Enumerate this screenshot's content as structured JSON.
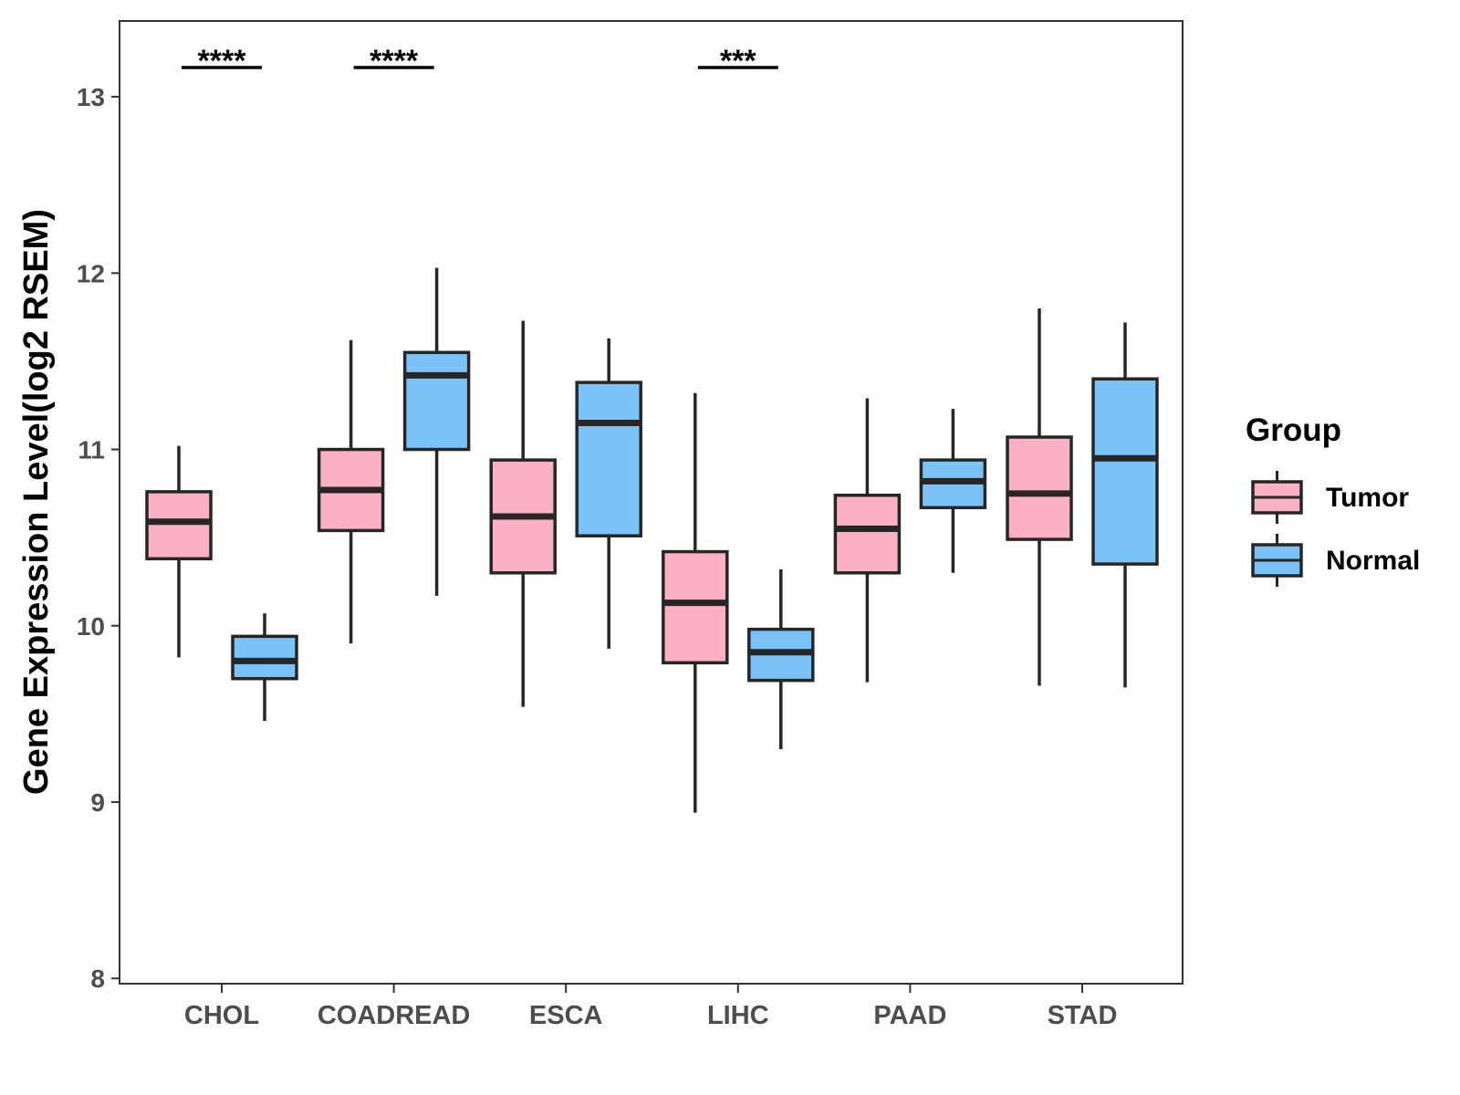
{
  "chart_data": {
    "type": "box",
    "ylabel": "Gene Expression Level(log2 RSEM)",
    "xlabel": "",
    "ylim": [
      7.97,
      13.43
    ],
    "yticks": [
      8,
      9,
      10,
      11,
      12,
      13
    ],
    "categories": [
      "CHOL",
      "COADREAD",
      "ESCA",
      "LIHC",
      "PAAD",
      "STAD"
    ],
    "legend": {
      "title": "Group",
      "placement": "right"
    },
    "series": [
      {
        "name": "Tumor",
        "color": "#FBB1C3",
        "boxes": [
          {
            "category": "CHOL",
            "whisker_low": 9.82,
            "q1": 10.38,
            "median": 10.59,
            "q3": 10.76,
            "whisker_high": 11.02
          },
          {
            "category": "COADREAD",
            "whisker_low": 9.9,
            "q1": 10.54,
            "median": 10.77,
            "q3": 11.0,
            "whisker_high": 11.62
          },
          {
            "category": "ESCA",
            "whisker_low": 9.54,
            "q1": 10.3,
            "median": 10.62,
            "q3": 10.94,
            "whisker_high": 11.73
          },
          {
            "category": "LIHC",
            "whisker_low": 8.94,
            "q1": 9.79,
            "median": 10.13,
            "q3": 10.42,
            "whisker_high": 11.32
          },
          {
            "category": "PAAD",
            "whisker_low": 9.68,
            "q1": 10.3,
            "median": 10.55,
            "q3": 10.74,
            "whisker_high": 11.29
          },
          {
            "category": "STAD",
            "whisker_low": 9.66,
            "q1": 10.49,
            "median": 10.75,
            "q3": 11.07,
            "whisker_high": 11.8
          }
        ]
      },
      {
        "name": "Normal",
        "color": "#7AC3F9",
        "boxes": [
          {
            "category": "CHOL",
            "whisker_low": 9.46,
            "q1": 9.7,
            "median": 9.8,
            "q3": 9.94,
            "whisker_high": 10.07
          },
          {
            "category": "COADREAD",
            "whisker_low": 10.17,
            "q1": 11.0,
            "median": 11.42,
            "q3": 11.55,
            "whisker_high": 12.03
          },
          {
            "category": "ESCA",
            "whisker_low": 9.87,
            "q1": 10.51,
            "median": 11.15,
            "q3": 11.38,
            "whisker_high": 11.63
          },
          {
            "category": "LIHC",
            "whisker_low": 9.3,
            "q1": 9.69,
            "median": 9.85,
            "q3": 9.98,
            "whisker_high": 10.32
          },
          {
            "category": "PAAD",
            "whisker_low": 10.3,
            "q1": 10.67,
            "median": 10.82,
            "q3": 10.94,
            "whisker_high": 11.23
          },
          {
            "category": "STAD",
            "whisker_low": 9.65,
            "q1": 10.35,
            "median": 10.95,
            "q3": 11.4,
            "whisker_high": 11.72
          }
        ]
      }
    ],
    "significance": [
      {
        "category": "CHOL",
        "label": "****"
      },
      {
        "category": "COADREAD",
        "label": "****"
      },
      {
        "category": "LIHC",
        "label": "***"
      }
    ]
  }
}
